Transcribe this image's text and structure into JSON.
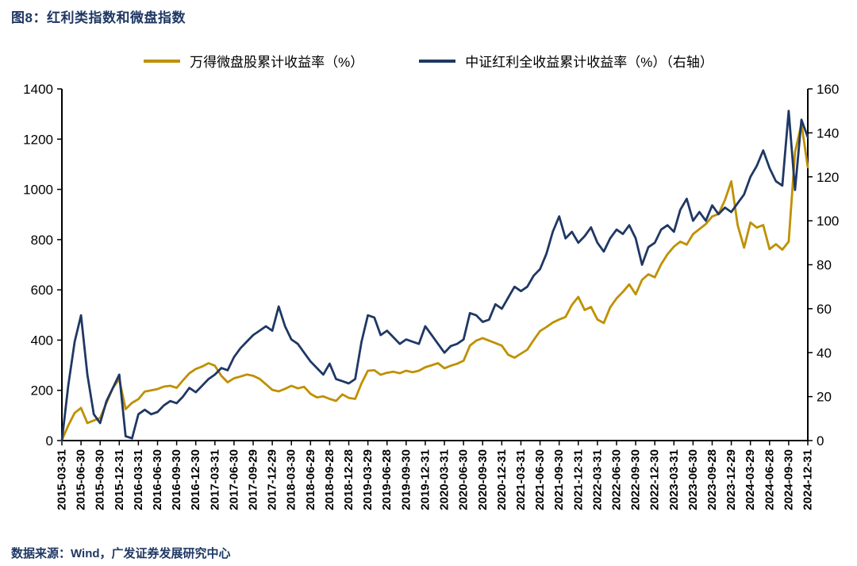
{
  "title": "图8：红利类指数和微盘指数",
  "footer": "数据来源：Wind，广发证券发展研究中心",
  "legend": [
    {
      "label": "万得微盘股累计收益率（%）",
      "color": "#BF9000"
    },
    {
      "label": "中证红利全收益累计收益率（%）（右轴）",
      "color": "#1F3864"
    }
  ],
  "chart_data": {
    "type": "line",
    "title": "图8：红利类指数和微盘指数",
    "grid": false,
    "legend_position": "top-center",
    "x_points_per_tick": 3,
    "x_tick_labels": [
      "2015-03-31",
      "2015-06-30",
      "2015-09-30",
      "2015-12-31",
      "2016-03-31",
      "2016-06-30",
      "2016-09-30",
      "2016-12-30",
      "2017-03-31",
      "2017-06-30",
      "2017-09-29",
      "2017-12-29",
      "2018-03-30",
      "2018-06-29",
      "2018-09-28",
      "2018-12-28",
      "2019-03-29",
      "2019-06-28",
      "2019-09-30",
      "2019-12-31",
      "2020-03-31",
      "2020-06-30",
      "2020-09-30",
      "2020-12-31",
      "2021-03-31",
      "2021-06-30",
      "2021-09-30",
      "2021-12-31",
      "2022-03-31",
      "2022-06-30",
      "2022-09-30",
      "2022-12-30",
      "2023-03-31",
      "2023-06-30",
      "2023-09-28",
      "2023-12-29",
      "2024-03-29",
      "2024-06-28",
      "2024-09-30",
      "2024-12-31"
    ],
    "left_axis": {
      "min": 0,
      "max": 1400,
      "step": 200
    },
    "right_axis": {
      "min": 0,
      "max": 160,
      "step": 20
    },
    "series": [
      {
        "name": "万得微盘股累计收益率（%）",
        "axis": "left",
        "color": "#BF9000",
        "values": [
          2,
          60,
          110,
          130,
          70,
          80,
          90,
          150,
          210,
          245,
          125,
          150,
          165,
          195,
          200,
          205,
          215,
          218,
          210,
          240,
          268,
          285,
          295,
          308,
          298,
          258,
          232,
          248,
          255,
          263,
          258,
          246,
          224,
          202,
          196,
          206,
          218,
          208,
          214,
          186,
          172,
          176,
          166,
          158,
          184,
          170,
          166,
          228,
          278,
          280,
          262,
          270,
          274,
          268,
          278,
          272,
          278,
          292,
          300,
          308,
          288,
          298,
          306,
          318,
          378,
          398,
          408,
          398,
          388,
          378,
          342,
          330,
          346,
          362,
          400,
          436,
          452,
          470,
          482,
          492,
          540,
          572,
          520,
          532,
          482,
          468,
          530,
          566,
          592,
          622,
          582,
          640,
          662,
          650,
          702,
          742,
          772,
          792,
          780,
          822,
          842,
          862,
          892,
          902,
          958,
          1032,
          858,
          768,
          868,
          848,
          858,
          762,
          782,
          760,
          792,
          1148,
          1262,
          1088
        ]
      },
      {
        "name": "中证红利全收益累计收益率（%）（右轴）",
        "axis": "right",
        "color": "#1F3864",
        "values": [
          0,
          25,
          45,
          57,
          30,
          12,
          8,
          18,
          24,
          30,
          2,
          1,
          12,
          14,
          12,
          13,
          16,
          18,
          17,
          20,
          24,
          22,
          25,
          28,
          30,
          33,
          32,
          38,
          42,
          45,
          48,
          50,
          52,
          50,
          61,
          52,
          46,
          44,
          40,
          36,
          33,
          30,
          35,
          28,
          27,
          26,
          28,
          45,
          57,
          56,
          48,
          50,
          47,
          44,
          46,
          45,
          44,
          52,
          48,
          44,
          40,
          43,
          44,
          46,
          58,
          57,
          54,
          55,
          62,
          60,
          65,
          70,
          68,
          70,
          75,
          78,
          85,
          95,
          102,
          92,
          95,
          90,
          93,
          97,
          90,
          86,
          92,
          96,
          94,
          98,
          92,
          80,
          88,
          90,
          96,
          98,
          95,
          105,
          110,
          100,
          104,
          100,
          107,
          103,
          106,
          104,
          108,
          112,
          120,
          125,
          132,
          124,
          118,
          116,
          150,
          114,
          146,
          138
        ]
      }
    ]
  }
}
